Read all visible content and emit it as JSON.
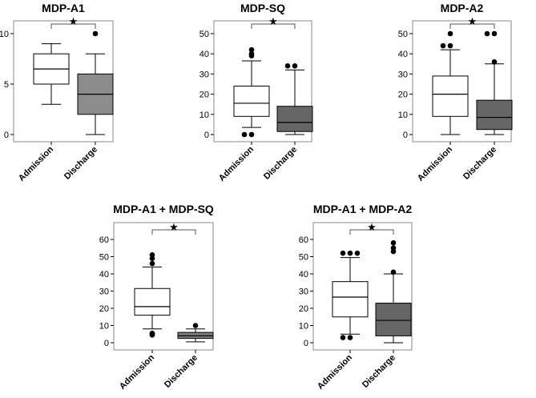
{
  "chart_data": [
    {
      "type": "box",
      "title": "MDP-A1",
      "categories": [
        "Admission",
        "Discharge"
      ],
      "ylim": [
        0,
        10
      ],
      "yticks": [
        0,
        5,
        10
      ],
      "significance": "★",
      "boxes": [
        {
          "name": "Admission",
          "whisker_low": 3,
          "q1": 5,
          "median": 6.5,
          "q3": 8,
          "whisker_high": 9,
          "outliers": [],
          "color": "#ffffff"
        },
        {
          "name": "Discharge",
          "whisker_low": 0,
          "q1": 2,
          "median": 4,
          "q3": 6,
          "whisker_high": 8,
          "outliers": [
            10
          ],
          "color": "#8c8c8c"
        }
      ]
    },
    {
      "type": "box",
      "title": "MDP-SQ",
      "categories": [
        "Admission",
        "Discharge"
      ],
      "ylim": [
        0,
        50
      ],
      "yticks": [
        0,
        10,
        20,
        30,
        40,
        50
      ],
      "significance": "★",
      "boxes": [
        {
          "name": "Admission",
          "whisker_low": 3.5,
          "q1": 9,
          "median": 15.5,
          "q3": 24,
          "whisker_high": 36.5,
          "outliers": [
            39,
            40,
            42,
            0,
            0
          ],
          "color": "#ffffff"
        },
        {
          "name": "Discharge",
          "whisker_low": 0,
          "q1": 1.5,
          "median": 6,
          "q3": 14,
          "whisker_high": 32,
          "outliers": [
            34,
            34
          ],
          "color": "#666666"
        }
      ]
    },
    {
      "type": "box",
      "title": "MDP-A2",
      "categories": [
        "Admission",
        "Discharge"
      ],
      "ylim": [
        0,
        50
      ],
      "yticks": [
        0,
        10,
        20,
        30,
        40,
        50
      ],
      "significance": "★",
      "boxes": [
        {
          "name": "Admission",
          "whisker_low": 0,
          "q1": 9,
          "median": 20,
          "q3": 29,
          "whisker_high": 42,
          "outliers": [
            44,
            44,
            50
          ],
          "color": "#ffffff"
        },
        {
          "name": "Discharge",
          "whisker_low": 0,
          "q1": 2.5,
          "median": 8.5,
          "q3": 17,
          "whisker_high": 35,
          "outliers": [
            36,
            50,
            50
          ],
          "color": "#666666"
        }
      ]
    },
    {
      "type": "box",
      "title": "MDP-A1 + MDP-SQ",
      "categories": [
        "Admission",
        "Discharge"
      ],
      "ylim": [
        0,
        60
      ],
      "yticks": [
        0,
        10,
        20,
        30,
        40,
        50,
        60
      ],
      "significance": "★",
      "boxes": [
        {
          "name": "Admission",
          "whisker_low": 8,
          "q1": 16,
          "median": 21,
          "q3": 31.5,
          "whisker_high": 44,
          "outliers": [
            46,
            49,
            51,
            5,
            4.5,
            5.5
          ],
          "color": "#ffffff"
        },
        {
          "name": "Discharge",
          "whisker_low": 0.5,
          "q1": 2.5,
          "median": 4,
          "q3": 6,
          "whisker_high": 8,
          "outliers": [
            10
          ],
          "color": "#808080"
        }
      ]
    },
    {
      "type": "box",
      "title": "MDP-A1 + MDP-A2",
      "categories": [
        "Admission",
        "Discharge"
      ],
      "ylim": [
        0,
        60
      ],
      "yticks": [
        0,
        10,
        20,
        30,
        40,
        50,
        60
      ],
      "significance": "★",
      "boxes": [
        {
          "name": "Admission",
          "whisker_low": 5,
          "q1": 15,
          "median": 26.5,
          "q3": 35.5,
          "whisker_high": 49.5,
          "outliers": [
            52,
            52,
            52,
            3,
            3
          ],
          "color": "#ffffff"
        },
        {
          "name": "Discharge",
          "whisker_low": 0,
          "q1": 4,
          "median": 13,
          "q3": 23,
          "whisker_high": 40,
          "outliers": [
            41,
            53,
            55,
            58
          ],
          "color": "#666666"
        }
      ]
    }
  ]
}
